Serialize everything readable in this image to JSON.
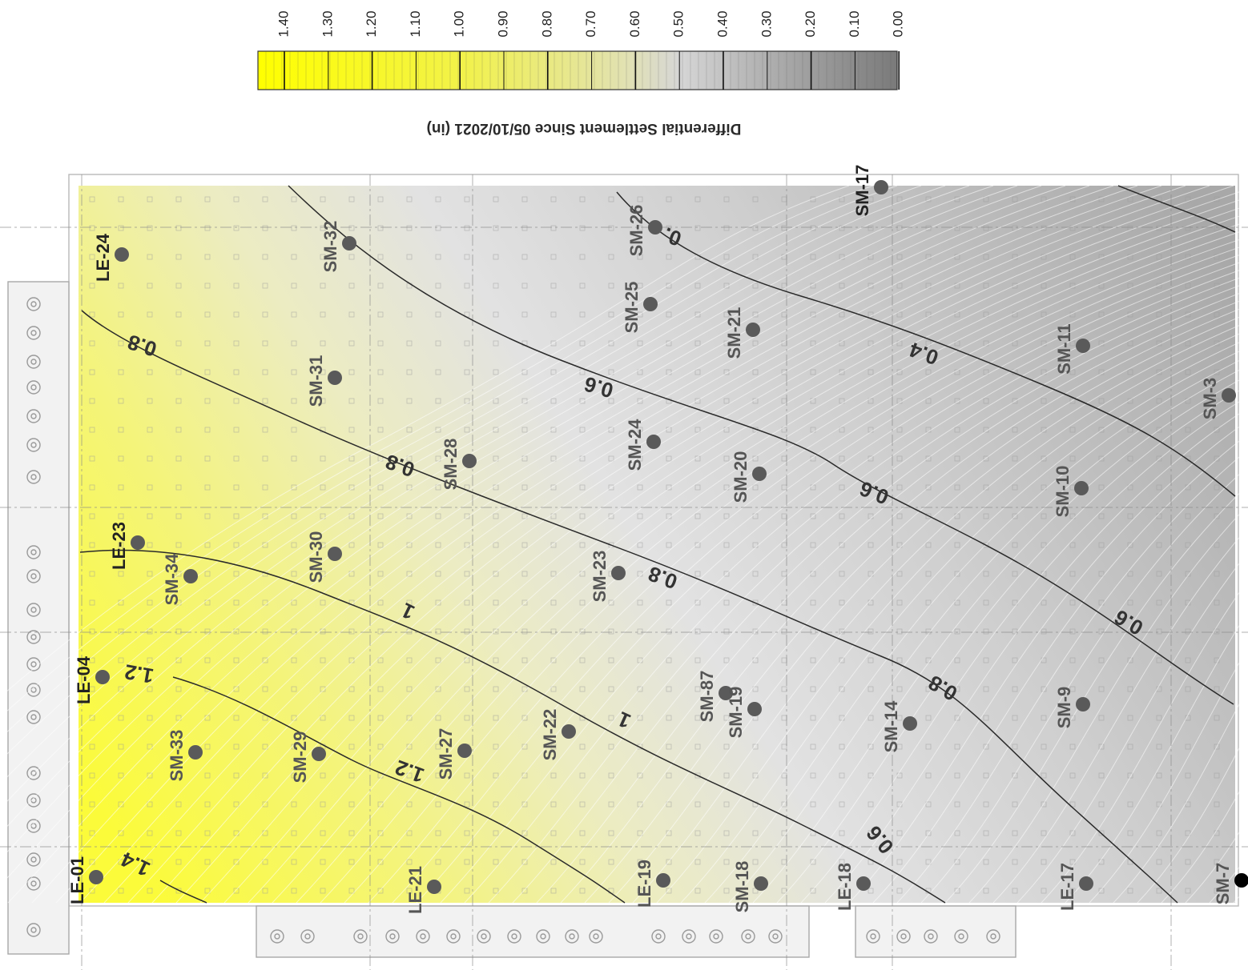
{
  "legend": {
    "title": "Differential Settlement Since 05/10/2021 (in)",
    "ticks": [
      "1.40",
      "1.30",
      "1.20",
      "1.10",
      "1.00",
      "0.90",
      "0.80",
      "0.70",
      "0.60",
      "0.50",
      "0.40",
      "0.30",
      "0.20",
      "0.10",
      "0.00"
    ],
    "color_low": "#7a7a7a",
    "color_mid": "#d6d6d6",
    "color_high": "#ffff00"
  },
  "map": {
    "background": "#d2d2d2",
    "contours": [
      {
        "label": "1.4"
      },
      {
        "label": "1.2"
      },
      {
        "label": "1.2"
      },
      {
        "label": "1"
      },
      {
        "label": "1"
      },
      {
        "label": "0.8"
      },
      {
        "label": "0.8"
      },
      {
        "label": "0.8"
      },
      {
        "label": "0.8"
      },
      {
        "label": "0.6"
      },
      {
        "label": "0.6"
      },
      {
        "label": "0.6"
      },
      {
        "label": "0.6"
      },
      {
        "label": "0.4"
      },
      {
        "label": "0."
      }
    ],
    "monitors": [
      {
        "label": "LE-01"
      },
      {
        "label": "LE-04"
      },
      {
        "label": "LE-23"
      },
      {
        "label": "LE-24"
      },
      {
        "label": "SM-33"
      },
      {
        "label": "SM-34"
      },
      {
        "label": "SM-29"
      },
      {
        "label": "SM-30"
      },
      {
        "label": "SM-31"
      },
      {
        "label": "SM-32"
      },
      {
        "label": "LE-21"
      },
      {
        "label": "SM-27"
      },
      {
        "label": "SM-28"
      },
      {
        "label": "SM-22"
      },
      {
        "label": "SM-23"
      },
      {
        "label": "SM-24"
      },
      {
        "label": "SM-25"
      },
      {
        "label": "SM-26"
      },
      {
        "label": "LE-19"
      },
      {
        "label": "SM-87"
      },
      {
        "label": "SM-19"
      },
      {
        "label": "SM-20"
      },
      {
        "label": "SM-21"
      },
      {
        "label": "SM-18"
      },
      {
        "label": "LE-18"
      },
      {
        "label": "SM-14"
      },
      {
        "label": "SM-17"
      },
      {
        "label": "LE-17"
      },
      {
        "label": "SM-9"
      },
      {
        "label": "SM-10"
      },
      {
        "label": "SM-11"
      },
      {
        "label": "SM-3"
      },
      {
        "label": "SM-7"
      }
    ]
  }
}
